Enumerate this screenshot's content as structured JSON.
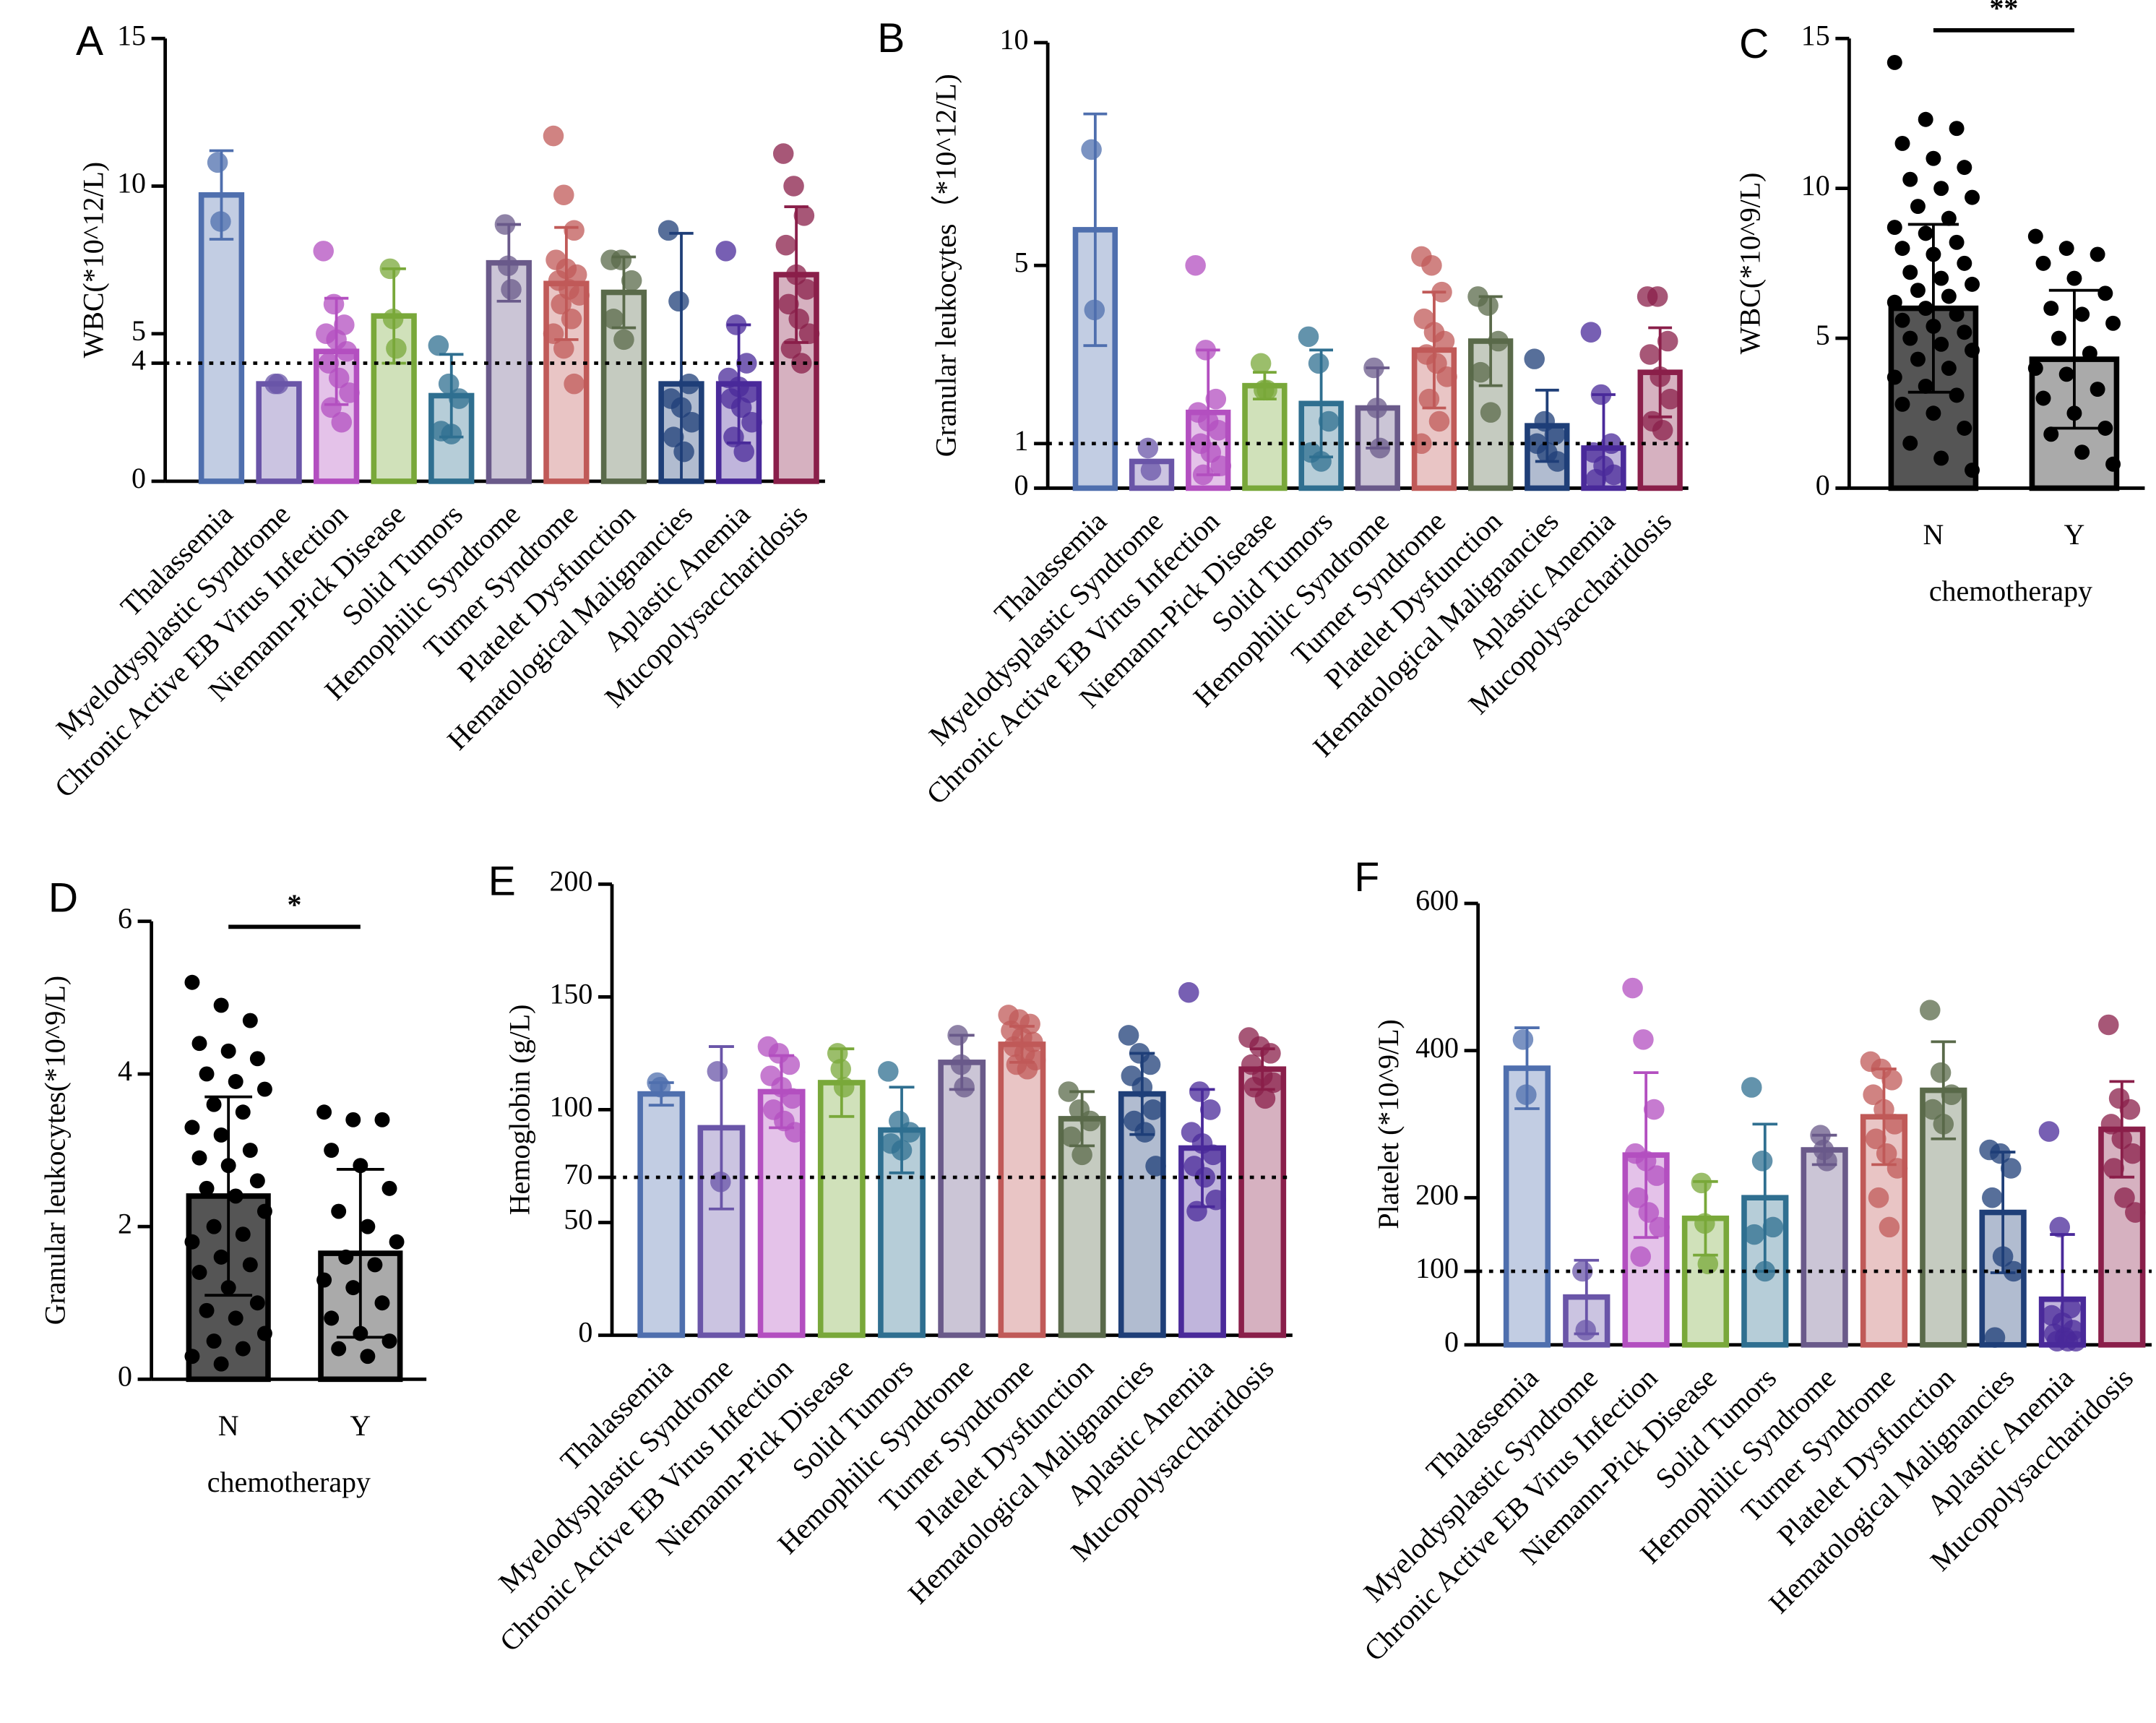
{
  "chart_data": [
    {
      "type": "bar",
      "label": "A",
      "ylabel": "WBC(*10^12/L)",
      "reference_line": 4,
      "ylim": [
        0,
        15
      ],
      "yticks": [
        0,
        4,
        5,
        10,
        15
      ],
      "categories": [
        "Thalassemia",
        "Myelodysplastic Syndrome",
        "Chronic Active EB Virus Infection",
        "Niemann-Pick Disease",
        "Solid Tumors",
        "Hemophilic Syndrome",
        "Turner Syndrome",
        "Platelet Dysfunction",
        "Hematological Malignancies",
        "Aplastic Anemia",
        "Mucopolysaccharidosis"
      ],
      "colors": [
        "#4f6fae",
        "#6a55a8",
        "#b34fc0",
        "#79a83a",
        "#2f6f90",
        "#6a5a8a",
        "#c05a58",
        "#5a6a4a",
        "#1f3f78",
        "#4a2a9a",
        "#8a1f4a"
      ],
      "values": [
        9.7,
        3.3,
        4.4,
        5.6,
        2.9,
        7.4,
        6.7,
        6.4,
        3.3,
        3.3,
        7.0
      ],
      "errors": [
        1.5,
        0,
        1.8,
        1.6,
        1.4,
        1.3,
        1.9,
        1.2,
        5.1,
        2.0,
        2.3
      ],
      "points": [
        [
          10.8,
          8.8
        ],
        [
          3.3,
          3.3
        ],
        [
          7.8,
          6,
          5.3,
          5,
          4.8,
          4.4,
          4,
          3.5,
          3,
          2.5,
          2
        ],
        [
          7.2,
          5.5,
          4.5
        ],
        [
          4.6,
          3.3,
          2.8,
          1.7,
          1.6
        ],
        [
          8.7,
          7.3,
          6.5
        ],
        [
          11.7,
          9.7,
          8.5,
          7.5,
          7.2,
          7,
          6.8,
          6.5,
          6.3,
          6,
          5.5,
          5,
          4.5,
          3.3
        ],
        [
          7.5,
          7.5,
          6.8,
          5.5,
          4.8
        ],
        [
          8.5,
          6.1,
          3.3,
          2.8,
          2.5,
          2,
          1.5,
          1
        ],
        [
          7.8,
          5.3,
          4,
          3.5,
          3.2,
          3,
          2.8,
          2.5,
          2,
          1.5,
          1
        ],
        [
          11.1,
          10,
          9,
          8,
          7,
          6.5,
          6,
          5.5,
          5,
          4.5,
          4
        ]
      ]
    },
    {
      "type": "bar",
      "label": "B",
      "ylabel": "Granular leukocytes（*10^12/L)",
      "reference_line": 1,
      "ylim": [
        0,
        10
      ],
      "yticks": [
        0,
        1,
        5,
        10
      ],
      "categories": [
        "Thalassemia",
        "Myelodysplastic Syndrome",
        "Chronic Active EB Virus Infection",
        "Niemann-Pick Disease",
        "Solid Tumors",
        "Hemophilic Syndrome",
        "Turner Syndrome",
        "Platelet Dysfunction",
        "Hematological Malignancies",
        "Aplastic Anemia",
        "Mucopolysaccharidosis"
      ],
      "colors": [
        "#4f6fae",
        "#6a55a8",
        "#b34fc0",
        "#79a83a",
        "#2f6f90",
        "#6a5a8a",
        "#c05a58",
        "#5a6a4a",
        "#1f3f78",
        "#4a2a9a",
        "#8a1f4a"
      ],
      "values": [
        5.8,
        0.6,
        1.7,
        2.3,
        1.9,
        1.8,
        3.1,
        3.3,
        1.4,
        0.9,
        2.6
      ],
      "errors": [
        2.6,
        0,
        1.4,
        0.3,
        1.2,
        0.9,
        1.3,
        1.0,
        0.8,
        1.2,
        1.0
      ],
      "points": [
        [
          7.6,
          4.0
        ],
        [
          0.9,
          0.4
        ],
        [
          5.0,
          3.1,
          2,
          1.7,
          1.5,
          1.3,
          1,
          0.8,
          0.5,
          0.3
        ],
        [
          2.8,
          2.2,
          2.2
        ],
        [
          3.4,
          2.8,
          1.5,
          0.8,
          0.6
        ],
        [
          2.7,
          1.8,
          0.9
        ],
        [
          5.2,
          5.0,
          4.4,
          3.8,
          3.5,
          3.3,
          3.0,
          2.8,
          2.5,
          2,
          1.5,
          1
        ],
        [
          4.3,
          4.1,
          3.3,
          2.6,
          1.7
        ],
        [
          2.9,
          1.5,
          1.2,
          1,
          0.8,
          0.6
        ],
        [
          3.5,
          2.1,
          1,
          0.8,
          0.5,
          0.3,
          0.2
        ],
        [
          4.3,
          4.3,
          3.3,
          3,
          2.5,
          2,
          1.5,
          1.3
        ]
      ]
    },
    {
      "type": "bar",
      "label": "C",
      "ylabel": "WBC(*10^9/L)",
      "xlabel": "chemotherapy",
      "significance": "**",
      "ylim": [
        0,
        15
      ],
      "yticks": [
        0,
        5,
        10,
        15
      ],
      "categories": [
        "N",
        "Y"
      ],
      "colors": [
        "#555555",
        "#aaaaaa"
      ],
      "values": [
        6.0,
        4.3
      ],
      "errors": [
        2.8,
        2.3
      ],
      "points": [
        [
          14.2,
          12.3,
          12.0,
          11.5,
          11.0,
          10.7,
          10.3,
          10.0,
          9.7,
          9.4,
          9.0,
          8.7,
          8.5,
          8.2,
          8.0,
          7.8,
          7.5,
          7.2,
          7.0,
          6.8,
          6.6,
          6.4,
          6.2,
          6.0,
          5.8,
          5.6,
          5.4,
          5.2,
          5.0,
          4.8,
          4.6,
          4.3,
          4.0,
          3.7,
          3.4,
          3.1,
          2.8,
          2.5,
          2.0,
          1.5,
          1.0,
          0.6
        ],
        [
          8.4,
          8.0,
          7.8,
          7.5,
          7.0,
          6.5,
          6.0,
          5.8,
          5.5,
          5.0,
          4.5,
          4.0,
          3.8,
          3.3,
          3.0,
          2.5,
          2.0,
          1.8,
          1.2,
          0.8
        ]
      ]
    },
    {
      "type": "bar",
      "label": "D",
      "ylabel": "Granular leukocytes(*10^9/L)",
      "xlabel": "chemotherapy",
      "significance": "*",
      "ylim": [
        0,
        6
      ],
      "yticks": [
        0,
        2,
        4,
        6
      ],
      "categories": [
        "N",
        "Y"
      ],
      "colors": [
        "#555555",
        "#aaaaaa"
      ],
      "values": [
        2.4,
        1.65
      ],
      "errors": [
        1.3,
        1.1
      ],
      "points": [
        [
          5.2,
          4.9,
          4.7,
          4.4,
          4.3,
          4.2,
          4.0,
          3.9,
          3.8,
          3.6,
          3.5,
          3.3,
          3.2,
          3.0,
          2.9,
          2.8,
          2.6,
          2.5,
          2.4,
          2.2,
          2.0,
          1.9,
          1.8,
          1.6,
          1.5,
          1.4,
          1.2,
          1.0,
          0.9,
          0.8,
          0.6,
          0.5,
          0.4,
          0.3,
          0.2
        ],
        [
          3.5,
          3.4,
          3.4,
          3.0,
          2.8,
          2.5,
          2.2,
          2.0,
          1.8,
          1.6,
          1.5,
          1.3,
          1.2,
          1.0,
          0.8,
          0.6,
          0.5,
          0.4,
          0.3
        ]
      ]
    },
    {
      "type": "bar",
      "label": "E",
      "ylabel": "Hemoglobin (g/L)",
      "reference_line": 70,
      "ylim": [
        0,
        200
      ],
      "yticks": [
        0,
        50,
        70,
        100,
        150,
        200
      ],
      "categories": [
        "Thalassemia",
        "Myelodysplastic Syndrome",
        "Chronic Active EB Virus Infection",
        "Niemann-Pick Disease",
        "Solid Tumors",
        "Hemophilic Syndrome",
        "Turner Syndrome",
        "Platelet Dysfunction",
        "Hematological Malignancies",
        "Aplastic Anemia",
        "Mucopolysaccharidosis"
      ],
      "colors": [
        "#4f6fae",
        "#6a55a8",
        "#b34fc0",
        "#79a83a",
        "#2f6f90",
        "#6a5a8a",
        "#c05a58",
        "#5a6a4a",
        "#1f3f78",
        "#4a2a9a",
        "#8a1f4a"
      ],
      "values": [
        107,
        92,
        108,
        112,
        91,
        121,
        129,
        96,
        107,
        83,
        118
      ],
      "errors": [
        5,
        36,
        16,
        15,
        19,
        12,
        8,
        12,
        18,
        26,
        9
      ],
      "points": [
        [
          112,
          110
        ],
        [
          117,
          68
        ],
        [
          128,
          125,
          120,
          115,
          110,
          105,
          100,
          95,
          90
        ],
        [
          125,
          118,
          110
        ],
        [
          117,
          95,
          90,
          85,
          82
        ],
        [
          133,
          120,
          110
        ],
        [
          142,
          140,
          138,
          135,
          132,
          130,
          128,
          125,
          122,
          120,
          118
        ],
        [
          108,
          100,
          95,
          88,
          80
        ],
        [
          133,
          125,
          120,
          115,
          110,
          100,
          95,
          90,
          75
        ],
        [
          152,
          108,
          100,
          90,
          85,
          80,
          75,
          70,
          60,
          55
        ],
        [
          132,
          128,
          125,
          120,
          115,
          112,
          110,
          105
        ]
      ]
    },
    {
      "type": "bar",
      "label": "F",
      "ylabel": "Platelet (*10^9/L)",
      "reference_line": 100,
      "ylim": [
        0,
        600
      ],
      "yticks": [
        0,
        100,
        200,
        400,
        600
      ],
      "categories": [
        "Thalassemia",
        "Myelodysplastic Syndrome",
        "Chronic Active EB Virus Infection",
        "Niemann-Pick Disease",
        "Solid Tumors",
        "Hemophilic Syndrome",
        "Turner Syndrome",
        "Platelet Dysfunction",
        "Hematological Malignancies",
        "Aplastic Anemia",
        "Mucopolysaccharidosis"
      ],
      "colors": [
        "#4f6fae",
        "#6a55a8",
        "#b34fc0",
        "#79a83a",
        "#2f6f90",
        "#6a5a8a",
        "#c05a58",
        "#5a6a4a",
        "#1f3f78",
        "#4a2a9a",
        "#8a1f4a"
      ],
      "values": [
        376,
        65,
        258,
        172,
        200,
        265,
        310,
        346,
        180,
        62,
        293
      ],
      "errors": [
        55,
        50,
        112,
        50,
        100,
        20,
        65,
        66,
        82,
        88,
        65
      ],
      "points": [
        [
          415,
          340
        ],
        [
          100,
          20
        ],
        [
          485,
          415,
          320,
          260,
          250,
          230,
          200,
          180,
          160,
          120
        ],
        [
          220,
          165,
          110
        ],
        [
          350,
          250,
          160,
          150,
          100
        ],
        [
          285,
          265,
          250
        ],
        [
          385,
          375,
          360,
          340,
          320,
          300,
          280,
          260,
          240,
          200,
          160
        ],
        [
          455,
          370,
          340,
          320,
          300
        ],
        [
          265,
          260,
          240,
          200,
          120,
          100,
          10
        ],
        [
          290,
          160,
          50,
          40,
          30,
          20,
          15,
          10,
          5,
          5,
          5
        ],
        [
          435,
          335,
          320,
          300,
          280,
          260,
          240,
          200,
          180
        ]
      ]
    }
  ]
}
